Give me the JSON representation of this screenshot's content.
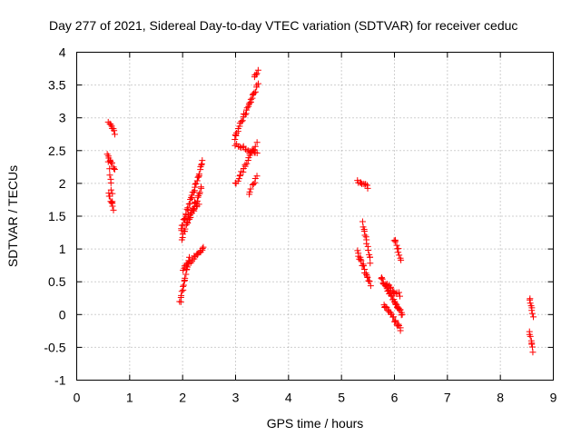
{
  "chart_data": {
    "type": "scatter",
    "title": "Day 277 of 2021, Sidereal Day-to-day VTEC variation (SDTVAR) for receiver ceduc",
    "xlabel": "GPS time / hours",
    "ylabel": "SDTVAR / TECUs",
    "xlim": [
      0,
      9
    ],
    "ylim": [
      -1,
      4
    ],
    "xticks": [
      "0",
      "1",
      "2",
      "3",
      "4",
      "5",
      "6",
      "7",
      "8",
      "9"
    ],
    "yticks": [
      "-1",
      "-0.5",
      "0",
      "0.5",
      "1",
      "1.5",
      "2",
      "2.5",
      "3",
      "3.5",
      "4"
    ],
    "grid": true,
    "marker": "+",
    "color": "#ff0000",
    "series": [
      {
        "name": "SDTVAR",
        "segments": [
          {
            "x0": 0.6,
            "x1": 0.72,
            "y0": 2.95,
            "y1": 2.75,
            "n": 8
          },
          {
            "x0": 0.58,
            "x1": 0.72,
            "y0": 2.45,
            "y1": 2.2,
            "n": 10
          },
          {
            "x0": 0.6,
            "x1": 0.7,
            "y0": 1.85,
            "y1": 1.6,
            "n": 8
          },
          {
            "x0": 0.6,
            "x1": 0.68,
            "y0": 2.3,
            "y1": 1.75,
            "n": 8
          },
          {
            "x0": 1.97,
            "x1": 2.38,
            "y0": 1.3,
            "y1": 2.32,
            "n": 34
          },
          {
            "x0": 1.98,
            "x1": 2.36,
            "y0": 1.15,
            "y1": 1.95,
            "n": 26
          },
          {
            "x0": 2.0,
            "x1": 2.4,
            "y0": 0.7,
            "y1": 1.0,
            "n": 22
          },
          {
            "x0": 1.95,
            "x1": 2.12,
            "y0": 0.18,
            "y1": 0.85,
            "n": 18
          },
          {
            "x0": 2.05,
            "x1": 2.3,
            "y0": 1.45,
            "y1": 1.7,
            "n": 12
          },
          {
            "x0": 2.98,
            "x1": 3.42,
            "y0": 2.7,
            "y1": 3.5,
            "n": 30
          },
          {
            "x0": 3.35,
            "x1": 3.42,
            "y0": 3.65,
            "y1": 3.7,
            "n": 5
          },
          {
            "x0": 3.0,
            "x1": 3.4,
            "y0": 2.0,
            "y1": 2.6,
            "n": 22
          },
          {
            "x0": 3.0,
            "x1": 3.4,
            "y0": 2.6,
            "y1": 2.45,
            "n": 16
          },
          {
            "x0": 3.25,
            "x1": 3.4,
            "y0": 1.85,
            "y1": 2.1,
            "n": 8
          },
          {
            "x0": 5.3,
            "x1": 5.5,
            "y0": 2.05,
            "y1": 1.95,
            "n": 10
          },
          {
            "x0": 5.4,
            "x1": 5.55,
            "y0": 1.4,
            "y1": 0.8,
            "n": 14
          },
          {
            "x0": 5.3,
            "x1": 5.55,
            "y0": 0.95,
            "y1": 0.45,
            "n": 20
          },
          {
            "x0": 5.75,
            "x1": 6.15,
            "y0": 0.55,
            "y1": 0.0,
            "n": 36
          },
          {
            "x0": 5.8,
            "x1": 6.12,
            "y0": 0.15,
            "y1": -0.22,
            "n": 22
          },
          {
            "x0": 6.0,
            "x1": 6.12,
            "y0": 1.15,
            "y1": 0.85,
            "n": 10
          },
          {
            "x0": 5.85,
            "x1": 6.1,
            "y0": 0.45,
            "y1": 0.3,
            "n": 12
          },
          {
            "x0": 8.55,
            "x1": 8.62,
            "y0": 0.25,
            "y1": -0.05,
            "n": 8
          },
          {
            "x0": 8.55,
            "x1": 8.62,
            "y0": -0.25,
            "y1": -0.55,
            "n": 8
          }
        ]
      }
    ]
  }
}
